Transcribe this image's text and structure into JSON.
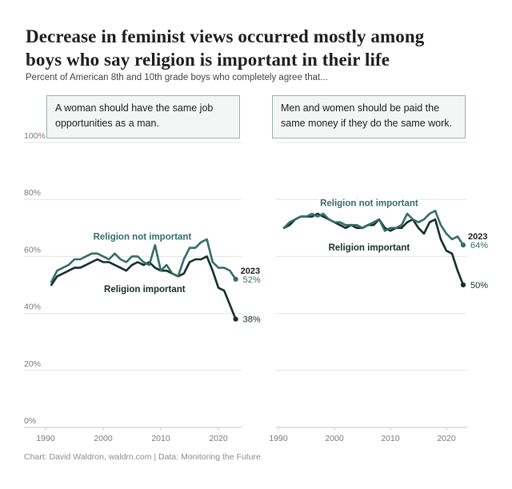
{
  "header": {
    "title_line1": "Decrease in feminist views occurred mostly among",
    "title_line2": "boys who say religion is important in their life",
    "subtitle": "Percent of American 8th and 10th grade boys who completely agree that..."
  },
  "footer": {
    "credit": "Chart: David Waldron, waldrn.com | Data: Monitoring the Future"
  },
  "colors": {
    "religion_not_important": "#346E63",
    "religion_important": "#152E29",
    "grid": "#E2E4E3",
    "axis_line": "#C2C6C4",
    "tick": "#C9C9C9",
    "axis_text": "#7A7A7A",
    "year_label": "#1D1D1D",
    "box_border": "#9AB0AA",
    "box_bg": "#F3F6F5"
  },
  "chart_data": [
    {
      "type": "line",
      "title": "A woman should have the same job opportunities as a man.",
      "year_start": 1991,
      "year_end": 2023,
      "end_year_label": "2023",
      "ylim": [
        0,
        100
      ],
      "yticks": [
        "0%",
        "20%",
        "40%",
        "60%",
        "80%",
        "100%"
      ],
      "xticks": [
        1990,
        2000,
        2010,
        2020
      ],
      "grid": true,
      "legend_position": "inline",
      "series": [
        {
          "name": "Religion not important",
          "end_label": "52%",
          "label_pos": {
            "year": 2006.8,
            "value": 67
          },
          "values": [
            51,
            55,
            56,
            57,
            59,
            59,
            60,
            61,
            61,
            60,
            59,
            61,
            59,
            58,
            60,
            60,
            58,
            57,
            64,
            55,
            57,
            54,
            53,
            59,
            63,
            63,
            65,
            66,
            58,
            56,
            56,
            55,
            52
          ]
        },
        {
          "name": "Religion important",
          "end_label": "38%",
          "label_pos": {
            "year": 2007.2,
            "value": 48.6
          },
          "values": [
            50,
            53,
            54,
            55,
            56,
            56,
            57,
            58,
            59,
            58,
            58,
            57,
            56,
            55,
            57,
            58,
            57,
            58,
            56,
            55,
            55,
            54,
            53,
            54,
            58,
            59,
            59,
            60,
            55,
            49,
            48,
            43,
            38
          ]
        }
      ]
    },
    {
      "type": "line",
      "title": "Men and women should be paid the same money if they do the same work.",
      "year_start": 1991,
      "year_end": 2023,
      "end_year_label": "2023",
      "ylim": [
        0,
        100
      ],
      "yticks": [
        "0%",
        "20%",
        "40%",
        "60%",
        "80%",
        "100%"
      ],
      "xticks": [
        1990,
        2000,
        2010,
        2020
      ],
      "grid": true,
      "legend_position": "inline",
      "series": [
        {
          "name": "Religion not important",
          "end_label": "64%",
          "label_pos": {
            "year": 2006.2,
            "value": 78.8
          },
          "values": [
            70,
            72,
            73,
            74,
            74,
            75,
            74,
            75,
            73,
            72,
            72,
            71,
            71,
            71,
            70,
            71,
            72,
            73,
            69,
            70,
            70,
            71,
            75,
            73,
            72,
            73,
            75,
            76,
            71,
            68,
            66,
            67,
            64
          ]
        },
        {
          "name": "Religion important",
          "end_label": "50%",
          "label_pos": {
            "year": 2006.2,
            "value": 63.2
          },
          "values": [
            70,
            71,
            73,
            74,
            74,
            74,
            75,
            74,
            73,
            72,
            71,
            70,
            71,
            70,
            70,
            71,
            71,
            73,
            70,
            69,
            70,
            70,
            72,
            73,
            70,
            68,
            72,
            73,
            66,
            62,
            61,
            55,
            50
          ]
        }
      ]
    }
  ]
}
